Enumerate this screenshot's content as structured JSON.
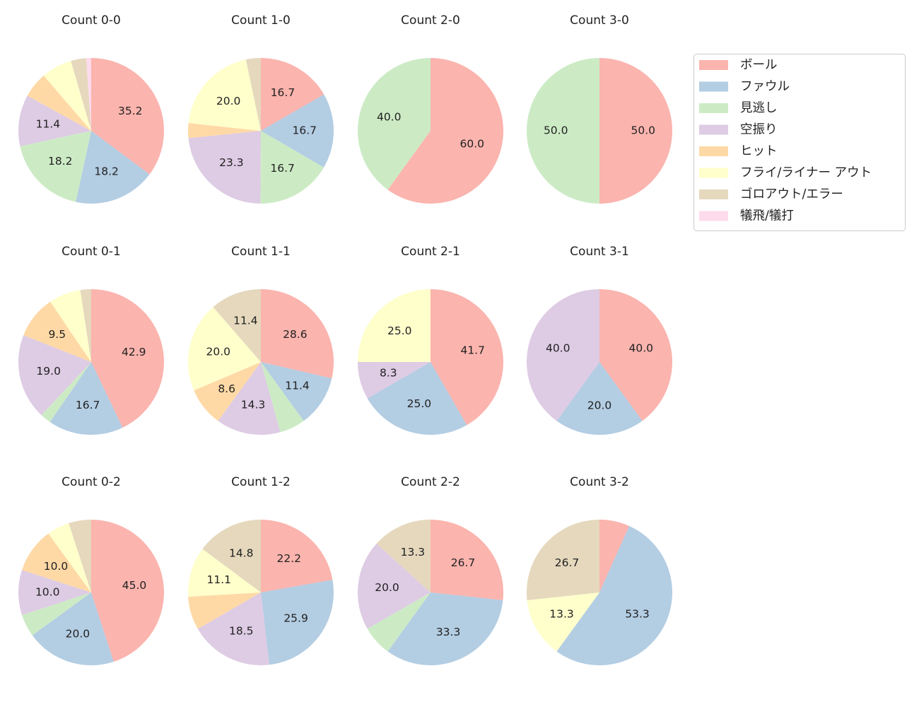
{
  "legend": {
    "location": "upper right",
    "categories": [
      "ボール",
      "ファウル",
      "見逃し",
      "空振り",
      "ヒット",
      "フライ/ライナー アウト",
      "ゴロアウト/エラー",
      "犠飛/犠打"
    ],
    "colors": [
      "#fbb4ae",
      "#b3cde3",
      "#ccebc5",
      "#decbe4",
      "#fed9a6",
      "#ffffcc",
      "#e5d8bd",
      "#fddaec"
    ]
  },
  "chart_data": [
    {
      "type": "pie",
      "title": "Count 0-0",
      "values": [
        35.2,
        18.2,
        18.2,
        11.4,
        5.7,
        6.8,
        3.4,
        1.1
      ],
      "value_labels": [
        "35.2",
        "18.2",
        "18.2",
        "11.4",
        null,
        null,
        null,
        null
      ]
    },
    {
      "type": "pie",
      "title": "Count 1-0",
      "values": [
        16.7,
        16.7,
        16.7,
        23.3,
        3.3,
        20.0,
        3.3,
        0
      ],
      "value_labels": [
        "16.7",
        "16.7",
        "16.7",
        "23.3",
        null,
        "20.0",
        null,
        null
      ]
    },
    {
      "type": "pie",
      "title": "Count 2-0",
      "values": [
        60.0,
        0,
        40.0,
        0,
        0,
        0,
        0,
        0
      ],
      "value_labels": [
        "60.0",
        null,
        "40.0",
        null,
        null,
        null,
        null,
        null
      ]
    },
    {
      "type": "pie",
      "title": "Count 3-0",
      "values": [
        50.0,
        0,
        50.0,
        0,
        0,
        0,
        0,
        0
      ],
      "value_labels": [
        "50.0",
        null,
        "50.0",
        null,
        null,
        null,
        null,
        null
      ]
    },
    {
      "type": "pie",
      "title": "Count 0-1",
      "values": [
        42.9,
        16.7,
        2.4,
        19.0,
        9.5,
        7.1,
        2.4,
        0
      ],
      "value_labels": [
        "42.9",
        "16.7",
        null,
        "19.0",
        "9.5",
        null,
        null,
        null
      ]
    },
    {
      "type": "pie",
      "title": "Count 1-1",
      "values": [
        28.6,
        11.4,
        5.7,
        14.3,
        8.6,
        20.0,
        11.4,
        0
      ],
      "value_labels": [
        "28.6",
        "11.4",
        null,
        "14.3",
        "8.6",
        "20.0",
        "11.4",
        null
      ]
    },
    {
      "type": "pie",
      "title": "Count 2-1",
      "values": [
        41.7,
        25.0,
        0,
        8.3,
        0,
        25.0,
        0,
        0
      ],
      "value_labels": [
        "41.7",
        "25.0",
        null,
        "8.3",
        null,
        "25.0",
        null,
        null
      ]
    },
    {
      "type": "pie",
      "title": "Count 3-1",
      "values": [
        40.0,
        20.0,
        0,
        40.0,
        0,
        0,
        0,
        0
      ],
      "value_labels": [
        "40.0",
        "20.0",
        null,
        "40.0",
        null,
        null,
        null,
        null
      ]
    },
    {
      "type": "pie",
      "title": "Count 0-2",
      "values": [
        45.0,
        20.0,
        5.0,
        10.0,
        10.0,
        5.0,
        5.0,
        0
      ],
      "value_labels": [
        "45.0",
        "20.0",
        null,
        "10.0",
        "10.0",
        null,
        null,
        null
      ]
    },
    {
      "type": "pie",
      "title": "Count 1-2",
      "values": [
        22.2,
        25.9,
        0,
        18.5,
        7.4,
        11.1,
        14.8,
        0
      ],
      "value_labels": [
        "22.2",
        "25.9",
        null,
        "18.5",
        null,
        "11.1",
        "14.8",
        null
      ]
    },
    {
      "type": "pie",
      "title": "Count 2-2",
      "values": [
        26.7,
        33.3,
        6.7,
        20.0,
        0,
        0,
        13.3,
        0
      ],
      "value_labels": [
        "26.7",
        "33.3",
        null,
        "20.0",
        null,
        null,
        "13.3",
        null
      ]
    },
    {
      "type": "pie",
      "title": "Count 3-2",
      "values": [
        6.7,
        53.3,
        0,
        0,
        0,
        13.3,
        26.7,
        0
      ],
      "value_labels": [
        null,
        "53.3",
        null,
        null,
        null,
        "13.3",
        "26.7",
        null
      ]
    }
  ]
}
